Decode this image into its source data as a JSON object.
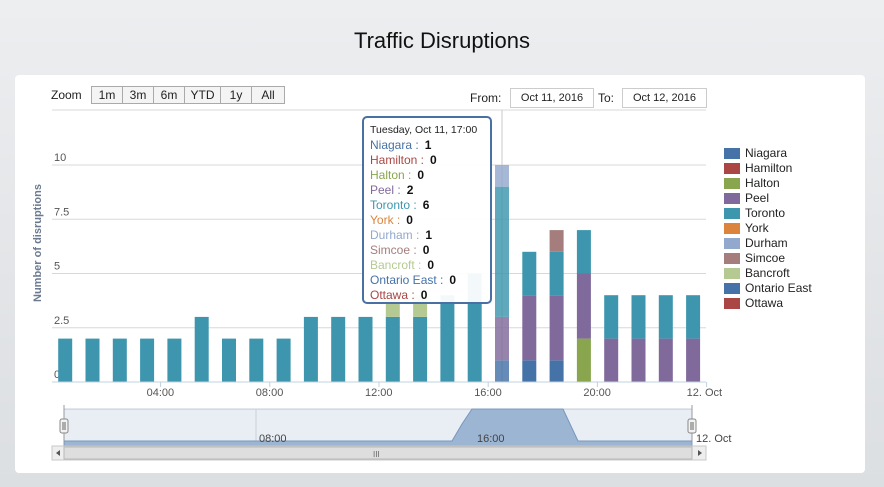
{
  "page": {
    "title": "Traffic Disruptions"
  },
  "range_selector": {
    "zoom_label": "Zoom",
    "buttons": [
      "1m",
      "3m",
      "6m",
      "YTD",
      "1y",
      "All"
    ],
    "from_label": "From:",
    "from_value": "Oct 11, 2016",
    "to_label": "To:",
    "to_value": "Oct 12, 2016"
  },
  "tooltip": {
    "header": "Tuesday, Oct 11, 17:00",
    "rows": [
      {
        "label": "Niagara",
        "value": "1"
      },
      {
        "label": "Hamilton",
        "value": "0"
      },
      {
        "label": "Halton",
        "value": "0"
      },
      {
        "label": "Peel",
        "value": "2"
      },
      {
        "label": "Toronto",
        "value": "6"
      },
      {
        "label": "York",
        "value": "0"
      },
      {
        "label": "Durham",
        "value": "1"
      },
      {
        "label": "Simcoe",
        "value": "0"
      },
      {
        "label": "Bancroft",
        "value": "0"
      },
      {
        "label": "Ontario East",
        "value": "0"
      },
      {
        "label": "Ottawa",
        "value": "0"
      }
    ]
  },
  "navigator": {
    "labels": [
      "08:00",
      "16:00",
      "12. Oct"
    ],
    "scroll_grip": "III"
  },
  "chart_data": {
    "type": "bar",
    "stacked": true,
    "title": "Traffic Disruptions",
    "ylabel": "Number of disruptions",
    "xlabel": "",
    "ylim": [
      0,
      10
    ],
    "y_ticks": [
      "0",
      "2.5",
      "5",
      "7.5",
      "10"
    ],
    "x_ticks": [
      "04:00",
      "08:00",
      "12:00",
      "16:00",
      "20:00",
      "12. Oct"
    ],
    "categories": [
      "01:00",
      "02:00",
      "03:00",
      "04:00",
      "05:00",
      "06:00",
      "07:00",
      "08:00",
      "09:00",
      "10:00",
      "11:00",
      "12:00",
      "13:00",
      "14:00",
      "15:00",
      "16:00",
      "17:00",
      "18:00",
      "19:00",
      "20:00",
      "21:00",
      "22:00",
      "23:00",
      "24:00"
    ],
    "legend_position": "right",
    "series": [
      {
        "name": "Niagara",
        "color": "#4572a7",
        "values": [
          0,
          0,
          0,
          0,
          0,
          0,
          0,
          0,
          0,
          0,
          0,
          0,
          0,
          0,
          0,
          0,
          1,
          1,
          1,
          0,
          0,
          0,
          0,
          0
        ]
      },
      {
        "name": "Hamilton",
        "color": "#aa4643",
        "values": [
          0,
          0,
          0,
          0,
          0,
          0,
          0,
          0,
          0,
          0,
          0,
          0,
          0,
          0,
          0,
          0,
          0,
          0,
          0,
          0,
          0,
          0,
          0,
          0
        ]
      },
      {
        "name": "Halton",
        "color": "#89a54e",
        "values": [
          0,
          0,
          0,
          0,
          0,
          0,
          0,
          0,
          0,
          0,
          0,
          0,
          0,
          0,
          0,
          0,
          0,
          0,
          0,
          2,
          0,
          0,
          0,
          0
        ]
      },
      {
        "name": "Peel",
        "color": "#80699b",
        "values": [
          0,
          0,
          0,
          0,
          0,
          0,
          0,
          0,
          0,
          0,
          0,
          0,
          0,
          0,
          0,
          0,
          2,
          3,
          3,
          3,
          2,
          2,
          2,
          2
        ]
      },
      {
        "name": "Toronto",
        "color": "#3d96ae",
        "values": [
          2,
          2,
          2,
          2,
          2,
          3,
          2,
          2,
          2,
          3,
          3,
          3,
          3,
          3,
          4,
          5,
          6,
          2,
          2,
          2,
          2,
          2,
          2,
          2
        ]
      },
      {
        "name": "York",
        "color": "#db843d",
        "values": [
          0,
          0,
          0,
          0,
          0,
          0,
          0,
          0,
          0,
          0,
          0,
          0,
          0,
          0,
          0,
          0,
          0,
          0,
          0,
          0,
          0,
          0,
          0,
          0
        ]
      },
      {
        "name": "Durham",
        "color": "#92a8cd",
        "values": [
          0,
          0,
          0,
          0,
          0,
          0,
          0,
          0,
          0,
          0,
          0,
          0,
          0,
          0,
          0,
          0,
          1,
          0,
          0,
          0,
          0,
          0,
          0,
          0
        ]
      },
      {
        "name": "Simcoe",
        "color": "#a47d7c",
        "values": [
          0,
          0,
          0,
          0,
          0,
          0,
          0,
          0,
          0,
          0,
          0,
          0,
          0,
          0,
          0,
          0,
          0,
          0,
          1,
          0,
          0,
          0,
          0,
          0
        ]
      },
      {
        "name": "Bancroft",
        "color": "#b5ca92",
        "values": [
          0,
          0,
          0,
          0,
          0,
          0,
          0,
          0,
          0,
          0,
          0,
          0,
          1,
          1,
          0,
          0,
          0,
          0,
          0,
          0,
          0,
          0,
          0,
          0
        ]
      },
      {
        "name": "Ontario East",
        "color": "#4572a7",
        "values": [
          0,
          0,
          0,
          0,
          0,
          0,
          0,
          0,
          0,
          0,
          0,
          0,
          0,
          0,
          0,
          0,
          0,
          0,
          0,
          0,
          0,
          0,
          0,
          0
        ]
      },
      {
        "name": "Ottawa",
        "color": "#aa4643",
        "values": [
          0,
          0,
          0,
          0,
          0,
          0,
          0,
          0,
          0,
          0,
          0,
          0,
          0,
          0,
          0,
          0,
          0,
          0,
          0,
          0,
          0,
          0,
          0,
          0
        ]
      }
    ]
  }
}
